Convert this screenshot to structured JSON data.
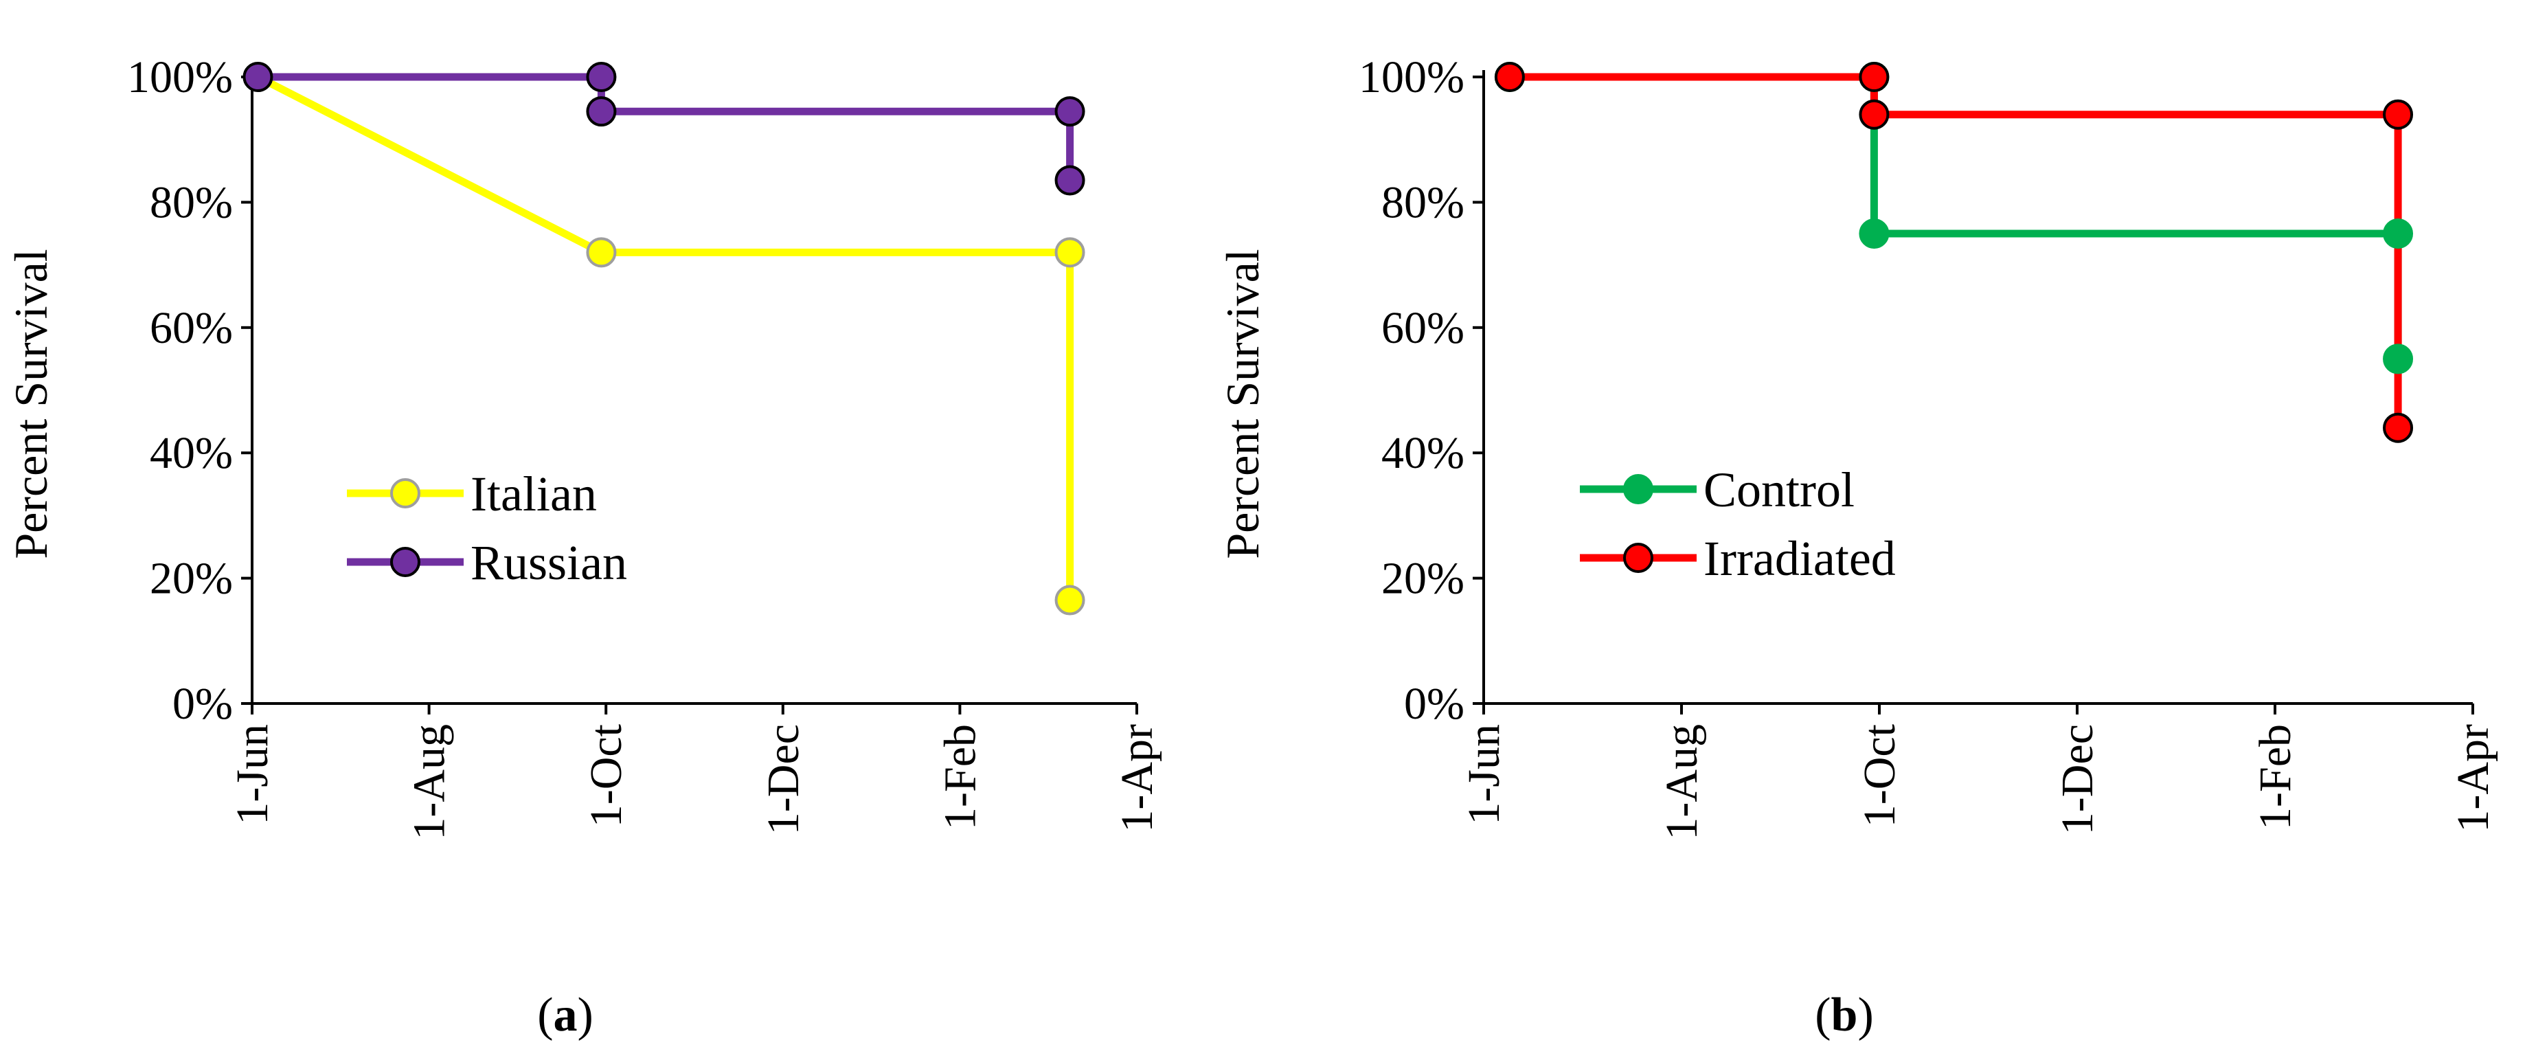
{
  "chart_data": [
    {
      "type": "line",
      "step": "survival",
      "panel_label": "a",
      "ylabel": "Percent Survival",
      "ylim": [
        0,
        100
      ],
      "y_ticks": [
        "0%",
        "20%",
        "40%",
        "60%",
        "80%",
        "100%"
      ],
      "x_ticks": [
        "1-Jun",
        "1-Aug",
        "1-Oct",
        "1-Dec",
        "1-Feb",
        "1-Apr"
      ],
      "xlim": [
        "2018-06-01",
        "2019-04-01"
      ],
      "legend_position": "lower-left",
      "series": [
        {
          "name": "Italian",
          "color": "#ffff00",
          "marker_edge": "#9e9e9e",
          "points": [
            {
              "x": "2018-06-03",
              "y": 100
            },
            {
              "x": "2018-09-29",
              "y": 72
            },
            {
              "x": "2019-03-09",
              "y": 72
            },
            {
              "x": "2019-03-09",
              "y": 16.5
            }
          ]
        },
        {
          "name": "Russian",
          "color": "#7030a0",
          "marker_edge": "#000000",
          "points": [
            {
              "x": "2018-06-03",
              "y": 100
            },
            {
              "x": "2018-09-29",
              "y": 100
            },
            {
              "x": "2018-09-29",
              "y": 94.5
            },
            {
              "x": "2019-03-09",
              "y": 94.5
            },
            {
              "x": "2019-03-09",
              "y": 83.5
            }
          ]
        }
      ]
    },
    {
      "type": "line",
      "step": "survival",
      "panel_label": "b",
      "ylabel": "Percent Survival",
      "ylim": [
        0,
        100
      ],
      "y_ticks": [
        "0%",
        "20%",
        "40%",
        "60%",
        "80%",
        "100%"
      ],
      "x_ticks": [
        "1-Jun",
        "1-Aug",
        "1-Oct",
        "1-Dec",
        "1-Feb",
        "1-Apr"
      ],
      "xlim": [
        "2018-06-01",
        "2019-04-01"
      ],
      "legend_position": "lower-left",
      "series": [
        {
          "name": "Control",
          "color": "#00b050",
          "marker_edge": "#00b050",
          "points": [
            {
              "x": "2018-06-09",
              "y": 100
            },
            {
              "x": "2018-09-29",
              "y": 100
            },
            {
              "x": "2018-09-29",
              "y": 75
            },
            {
              "x": "2019-03-09",
              "y": 75
            },
            {
              "x": "2019-03-09",
              "y": 55
            }
          ]
        },
        {
          "name": "Irradiated",
          "color": "#ff0000",
          "marker_edge": "#000000",
          "points": [
            {
              "x": "2018-06-09",
              "y": 100
            },
            {
              "x": "2018-09-29",
              "y": 100
            },
            {
              "x": "2018-09-29",
              "y": 94
            },
            {
              "x": "2019-03-09",
              "y": 94
            },
            {
              "x": "2019-03-09",
              "y": 44
            }
          ]
        }
      ]
    }
  ]
}
